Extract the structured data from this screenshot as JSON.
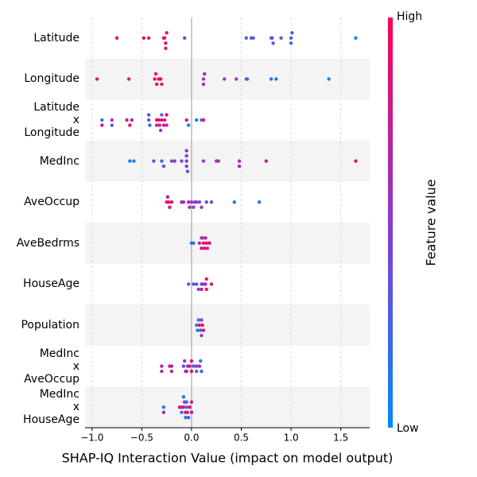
{
  "chart_data": {
    "type": "beeswarm",
    "xlabel": "SHAP-IQ Interaction Value (impact on model output)",
    "xlim": [
      -1.07,
      1.79
    ],
    "xticks": [
      {
        "value": -1,
        "label": "−1.0"
      },
      {
        "value": -0.5,
        "label": "−0.5"
      },
      {
        "value": 0,
        "label": "0.0"
      },
      0.5,
      {
        "value": 1,
        "label": "1.0"
      },
      1.5
    ],
    "grid": true,
    "colorbar": {
      "label": "Feature value",
      "high": "High",
      "low": "Low",
      "low_color": "#008bfb",
      "mid_color": "#8a3bd0",
      "high_color": "#ff0052"
    },
    "series": [
      {
        "name": "Latitude",
        "values": [
          -0.75,
          -0.48,
          -0.43,
          -0.27,
          -0.26,
          -0.25,
          -0.28,
          -0.26,
          -0.07,
          0.55,
          0.6,
          0.62,
          0.8,
          0.81,
          0.82,
          0.9,
          1.0,
          1.0,
          1.01,
          1.65
        ],
        "feature_values": [
          0.95,
          0.9,
          0.9,
          0.85,
          0.9,
          0.85,
          0.9,
          0.85,
          0.5,
          0.3,
          0.25,
          0.3,
          0.3,
          0.25,
          0.35,
          0.3,
          0.3,
          0.25,
          0.3,
          0.05
        ]
      },
      {
        "name": "Longitude",
        "values": [
          -0.95,
          -0.63,
          -0.37,
          -0.35,
          -0.33,
          -0.31,
          -0.3,
          -0.36,
          0.12,
          0.12,
          0.13,
          0.33,
          0.45,
          0.55,
          0.56,
          0.8,
          0.85,
          1.38
        ],
        "feature_values": [
          0.95,
          0.9,
          0.9,
          0.85,
          0.9,
          0.95,
          0.85,
          0.9,
          0.6,
          0.55,
          0.65,
          0.55,
          0.5,
          0.3,
          0.25,
          0.15,
          0.1,
          0.05
        ]
      },
      {
        "name": "Latitude\nx\nLongitude",
        "values": [
          -0.9,
          -0.9,
          -0.8,
          -0.8,
          -0.65,
          -0.6,
          -0.62,
          -0.43,
          -0.42,
          -0.43,
          -0.35,
          -0.33,
          -0.3,
          -0.27,
          -0.25,
          -0.28,
          -0.32,
          -0.3,
          -0.25,
          -0.05,
          -0.03,
          0.05,
          0.1,
          0.12,
          -0.35,
          -0.31
        ],
        "feature_values": [
          0.1,
          0.95,
          0.6,
          0.4,
          0.8,
          0.7,
          0.9,
          0.3,
          0.2,
          0.35,
          0.9,
          0.95,
          0.85,
          0.9,
          0.5,
          0.9,
          0.6,
          0.3,
          0.85,
          0.9,
          0.1,
          0.1,
          0.05,
          0.95,
          0.85,
          0.55
        ]
      },
      {
        "name": "MedInc",
        "values": [
          -0.62,
          -0.58,
          -0.38,
          -0.3,
          -0.28,
          -0.2,
          -0.17,
          -0.1,
          -0.05,
          -0.05,
          -0.05,
          -0.04,
          -0.05,
          0.12,
          0.25,
          0.27,
          0.48,
          0.48,
          0.75,
          1.65
        ],
        "feature_values": [
          0.05,
          0.1,
          0.3,
          0.25,
          0.35,
          0.3,
          0.7,
          0.35,
          0.5,
          0.45,
          0.55,
          0.4,
          0.6,
          0.5,
          0.6,
          0.55,
          0.6,
          0.65,
          0.75,
          0.95
        ]
      },
      {
        "name": "AveOccup",
        "values": [
          -0.25,
          -0.23,
          -0.22,
          -0.2,
          -0.24,
          -0.1,
          -0.08,
          -0.03,
          0.0,
          0.03,
          0.05,
          0.08,
          0.1,
          0.15,
          0.2,
          0.43,
          0.68,
          -0.02,
          0.02
        ],
        "feature_values": [
          0.9,
          0.95,
          0.85,
          0.9,
          0.8,
          0.7,
          0.6,
          0.65,
          0.55,
          0.6,
          0.5,
          0.45,
          0.55,
          0.4,
          0.45,
          0.1,
          0.15,
          0.6,
          0.5
        ]
      },
      {
        "name": "AveBedrms",
        "values": [
          0.0,
          0.02,
          0.08,
          0.1,
          0.12,
          0.13,
          0.15,
          0.16,
          0.18,
          0.1,
          0.11,
          0.14
        ],
        "feature_values": [
          0.1,
          0.2,
          0.7,
          0.85,
          0.9,
          0.8,
          0.95,
          0.75,
          0.9,
          0.6,
          0.5,
          0.85
        ]
      },
      {
        "name": "HouseAge",
        "values": [
          -0.03,
          0.02,
          0.05,
          0.07,
          0.1,
          0.12,
          0.14,
          0.15,
          0.2,
          0.1,
          0.15
        ],
        "feature_values": [
          0.2,
          0.3,
          0.4,
          0.45,
          0.5,
          0.55,
          0.6,
          0.9,
          0.95,
          0.85,
          0.9
        ]
      },
      {
        "name": "Population",
        "values": [
          0.05,
          0.06,
          0.08,
          0.09,
          0.1,
          0.11,
          0.12,
          0.07,
          0.1
        ],
        "feature_values": [
          0.1,
          0.2,
          0.9,
          0.3,
          0.5,
          0.95,
          0.85,
          0.15,
          0.4
        ]
      },
      {
        "name": "MedInc\nx\nAveOccup",
        "values": [
          -0.3,
          -0.22,
          -0.2,
          -0.08,
          -0.06,
          -0.04,
          -0.02,
          0.0,
          0.02,
          0.05,
          0.08,
          0.1,
          -0.05,
          0.0,
          0.05,
          0.09,
          -0.3,
          -0.2,
          -0.07
        ],
        "feature_values": [
          0.6,
          0.7,
          0.65,
          0.5,
          0.4,
          0.2,
          0.9,
          0.95,
          0.3,
          0.55,
          0.6,
          0.2,
          0.7,
          0.85,
          0.15,
          0.1,
          0.55,
          0.7,
          0.4
        ]
      },
      {
        "name": "MedInc\nx\nHouseAge",
        "values": [
          -0.28,
          -0.12,
          -0.1,
          -0.08,
          -0.06,
          -0.05,
          -0.04,
          -0.02,
          0.0,
          -0.07,
          -0.06,
          -0.28,
          -0.1,
          -0.08,
          -0.05,
          -0.03,
          0.0
        ],
        "feature_values": [
          0.2,
          0.9,
          0.85,
          0.7,
          0.95,
          0.2,
          0.6,
          0.9,
          0.85,
          0.8,
          0.15,
          0.6,
          0.3,
          0.2,
          0.15,
          0.25,
          0.7
        ]
      }
    ]
  }
}
